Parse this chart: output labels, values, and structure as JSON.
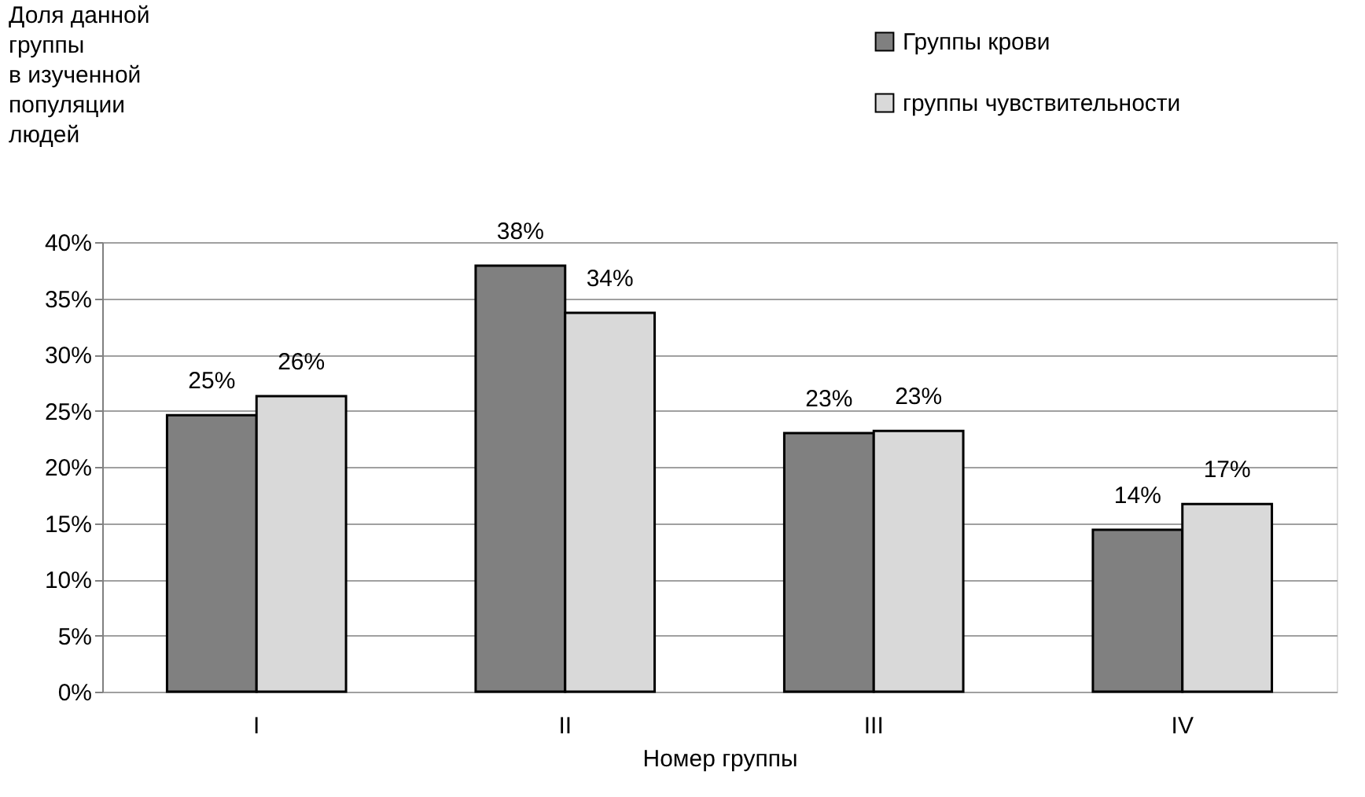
{
  "chart_data": {
    "type": "bar",
    "ylabel": "Доля данной\nгруппы\nв изученной\nпопуляции\nлюдей",
    "xlabel": "Номер группы",
    "categories": [
      "I",
      "II",
      "III",
      "IV"
    ],
    "series": [
      {
        "name": "Группы крови",
        "color": "#808080",
        "values": [
          24.6,
          37.9,
          23.0,
          14.4
        ],
        "value_labels": [
          "25%",
          "38%",
          "23%",
          "14%"
        ]
      },
      {
        "name": "группы чувствительности",
        "color": "#d9d9d9",
        "values": [
          26.3,
          33.7,
          23.2,
          16.7
        ],
        "value_labels": [
          "26%",
          "34%",
          "23%",
          "17%"
        ]
      }
    ],
    "ylim": [
      0,
      40
    ],
    "yticks": [
      {
        "value": 0,
        "label": "0%"
      },
      {
        "value": 5,
        "label": "5%"
      },
      {
        "value": 10,
        "label": "10%"
      },
      {
        "value": 15,
        "label": "15%"
      },
      {
        "value": 20,
        "label": "20%"
      },
      {
        "value": 25,
        "label": "25%"
      },
      {
        "value": 30,
        "label": "30%"
      },
      {
        "value": 35,
        "label": "35%"
      },
      {
        "value": 40,
        "label": "40%"
      }
    ],
    "grid": "y",
    "legend": "top right"
  }
}
